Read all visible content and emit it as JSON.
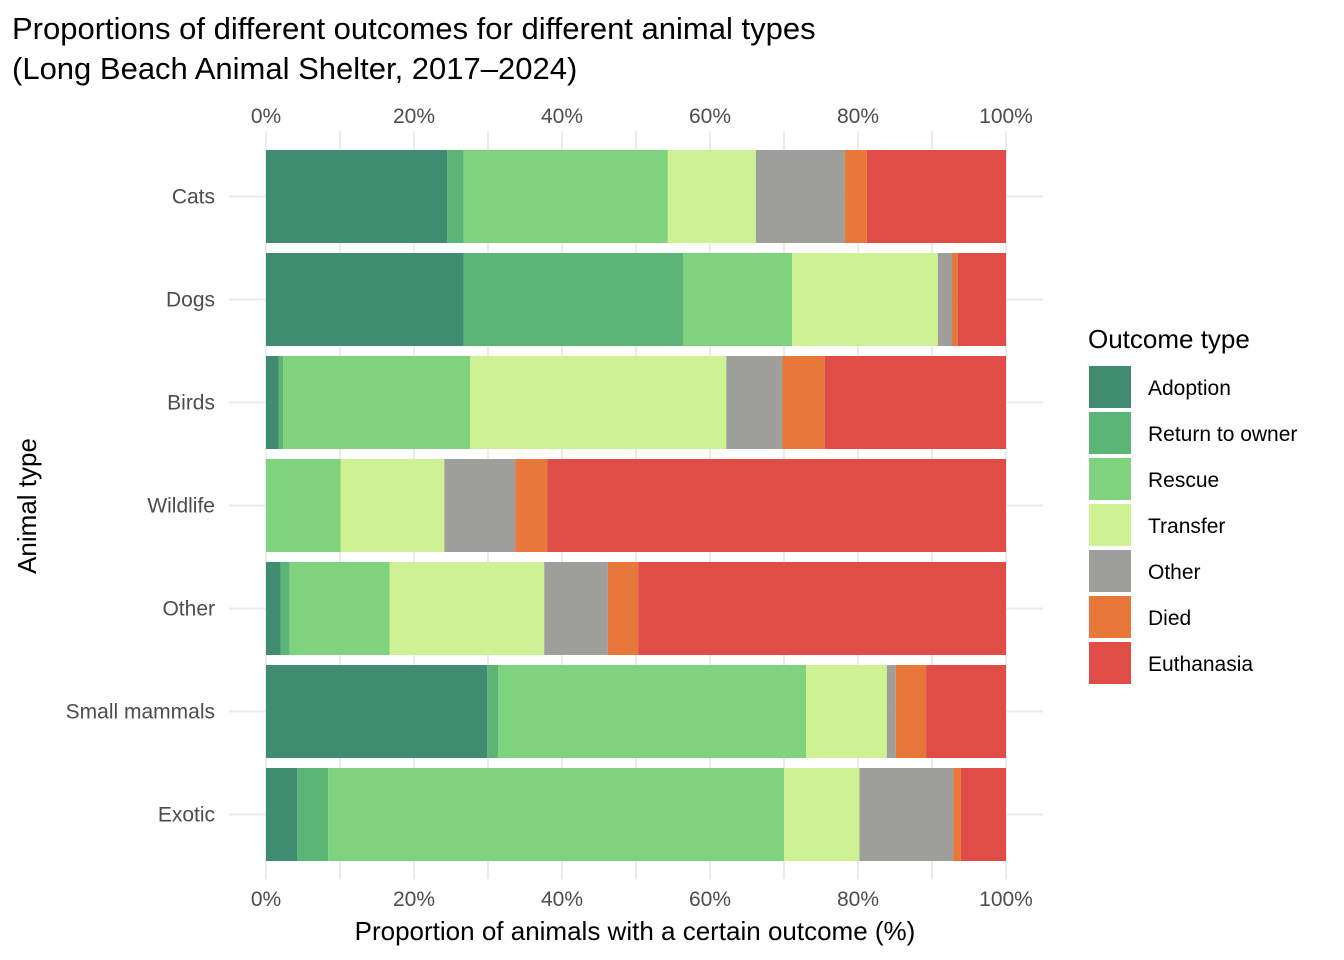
{
  "chart_data": {
    "type": "bar",
    "orientation": "horizontal",
    "stacked": "percent",
    "title": "Proportions of different outcomes for different animal types",
    "subtitle": "(Long Beach Animal Shelter, 2017–2024)",
    "xlabel": "Proportion of animals with a certain outcome (%)",
    "ylabel": "Animal type",
    "xlim": [
      0,
      100
    ],
    "x_ticks": [
      "0%",
      "20%",
      "40%",
      "60%",
      "80%",
      "100%"
    ],
    "x_tick_values": [
      0,
      20,
      40,
      60,
      80,
      100
    ],
    "x_axis_position": "top and bottom",
    "grid": true,
    "legend_title": "Outcome type",
    "legend_position": "right",
    "categories": [
      "Cats",
      "Dogs",
      "Birds",
      "Wildlife",
      "Other",
      "Small mammals",
      "Exotic"
    ],
    "series": [
      {
        "name": "Adoption",
        "color": "#3f8c70",
        "values": [
          24.5,
          26.7,
          1.7,
          0.0,
          2.0,
          29.9,
          4.2
        ]
      },
      {
        "name": "Return to owner",
        "color": "#5bb577",
        "values": [
          2.2,
          29.7,
          0.6,
          0.0,
          1.2,
          1.5,
          4.2
        ]
      },
      {
        "name": "Rescue",
        "color": "#80d37e",
        "values": [
          27.6,
          14.7,
          25.3,
          10.1,
          13.5,
          41.6,
          61.6
        ]
      },
      {
        "name": "Transfer",
        "color": "#cdf193",
        "values": [
          11.9,
          19.7,
          34.6,
          14.0,
          20.9,
          10.9,
          10.2
        ]
      },
      {
        "name": "Other",
        "color": "#9e9e9b",
        "values": [
          12.0,
          1.9,
          7.6,
          9.6,
          8.6,
          1.2,
          12.7
        ]
      },
      {
        "name": "Died",
        "color": "#e8773a",
        "values": [
          3.0,
          0.8,
          5.7,
          4.3,
          4.1,
          4.1,
          1.0
        ]
      },
      {
        "name": "Euthanasia",
        "color": "#e04c46",
        "values": [
          18.8,
          6.5,
          24.5,
          62.0,
          49.7,
          10.8,
          6.1
        ]
      }
    ]
  }
}
